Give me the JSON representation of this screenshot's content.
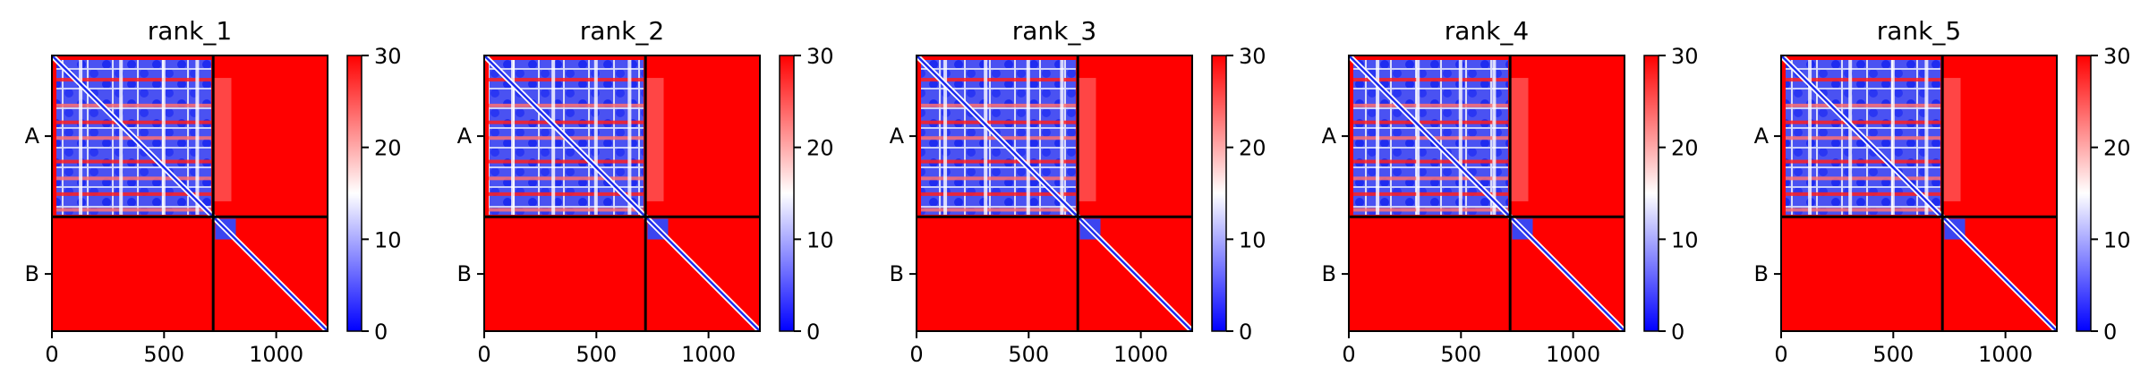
{
  "chart_data": [
    {
      "type": "heatmap",
      "title": "rank_1",
      "xticks": [
        0,
        500,
        1000
      ],
      "xlim": [
        0,
        1229
      ],
      "yticklabels": [
        "A",
        "B"
      ],
      "chain_boundary": 719,
      "colorbar": {
        "ticks": [
          0,
          10,
          20,
          30
        ],
        "range": [
          0,
          30
        ],
        "colors": [
          "#0000ff",
          "#ffffff",
          "#ff0000"
        ]
      }
    },
    {
      "type": "heatmap",
      "title": "rank_2",
      "xticks": [
        0,
        500,
        1000
      ],
      "xlim": [
        0,
        1229
      ],
      "yticklabels": [
        "A",
        "B"
      ],
      "chain_boundary": 719,
      "colorbar": {
        "ticks": [
          0,
          10,
          20,
          30
        ],
        "range": [
          0,
          30
        ],
        "colors": [
          "#0000ff",
          "#ffffff",
          "#ff0000"
        ]
      }
    },
    {
      "type": "heatmap",
      "title": "rank_3",
      "xticks": [
        0,
        500,
        1000
      ],
      "xlim": [
        0,
        1229
      ],
      "yticklabels": [
        "A",
        "B"
      ],
      "chain_boundary": 719,
      "colorbar": {
        "ticks": [
          0,
          10,
          20,
          30
        ],
        "range": [
          0,
          30
        ],
        "colors": [
          "#0000ff",
          "#ffffff",
          "#ff0000"
        ]
      }
    },
    {
      "type": "heatmap",
      "title": "rank_4",
      "xticks": [
        0,
        500,
        1000
      ],
      "xlim": [
        0,
        1229
      ],
      "yticklabels": [
        "A",
        "B"
      ],
      "chain_boundary": 719,
      "colorbar": {
        "ticks": [
          0,
          10,
          20,
          30
        ],
        "range": [
          0,
          30
        ],
        "colors": [
          "#0000ff",
          "#ffffff",
          "#ff0000"
        ]
      }
    },
    {
      "type": "heatmap",
      "title": "rank_5",
      "xticks": [
        0,
        500,
        1000
      ],
      "xlim": [
        0,
        1229
      ],
      "yticklabels": [
        "A",
        "B"
      ],
      "chain_boundary": 719,
      "colorbar": {
        "ticks": [
          0,
          10,
          20,
          30
        ],
        "range": [
          0,
          30
        ],
        "colors": [
          "#0000ff",
          "#ffffff",
          "#ff0000"
        ]
      }
    }
  ]
}
